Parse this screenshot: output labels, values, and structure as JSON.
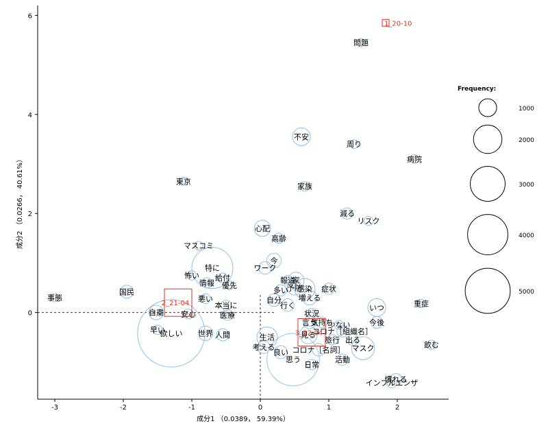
{
  "chart_data": {
    "type": "scatter",
    "xlabel": "成分1 （0.0389， 59.39%）",
    "ylabel": "成分2 （0.0266， 40.61%）",
    "xlim": [
      -3.25,
      2.75
    ],
    "ylim": [
      -1.75,
      6.2
    ],
    "xticks": [
      -3,
      -2,
      -1,
      0,
      1,
      2
    ],
    "yticks": [
      0,
      2,
      4,
      6
    ],
    "reference_lines": "dashed lines at x=0 and y=0",
    "grid": false,
    "bubble_color": "#8ec0ea",
    "date_color": "#e03020",
    "words": [
      {
        "label": "問題",
        "x": 1.47,
        "y": 5.45,
        "freq": 60
      },
      {
        "label": "不安",
        "x": 0.6,
        "y": 3.55,
        "freq": 300
      },
      {
        "label": "周り",
        "x": 1.37,
        "y": 3.4,
        "freq": 70
      },
      {
        "label": "病院",
        "x": 2.25,
        "y": 3.1,
        "freq": 70
      },
      {
        "label": "東京",
        "x": -1.12,
        "y": 2.65,
        "freq": 60
      },
      {
        "label": "家族",
        "x": 0.65,
        "y": 2.55,
        "freq": 80
      },
      {
        "label": "減る",
        "x": 1.27,
        "y": 2.0,
        "freq": 120
      },
      {
        "label": "リスク",
        "x": 1.58,
        "y": 1.85,
        "freq": 80
      },
      {
        "label": "心配",
        "x": 0.03,
        "y": 1.7,
        "freq": 250
      },
      {
        "label": "高齢",
        "x": 0.27,
        "y": 1.5,
        "freq": 100
      },
      {
        "label": "マスコミ",
        "x": -0.9,
        "y": 1.35,
        "freq": 70
      },
      {
        "label": "特に",
        "x": -0.7,
        "y": 0.9,
        "freq": 1600
      },
      {
        "label": "今",
        "x": 0.2,
        "y": 1.05,
        "freq": 200
      },
      {
        "label": "ワーク",
        "x": 0.07,
        "y": 0.9,
        "freq": 150
      },
      {
        "label": "怖い",
        "x": -1.0,
        "y": 0.75,
        "freq": 80
      },
      {
        "label": "給付",
        "x": -0.55,
        "y": 0.7,
        "freq": 90
      },
      {
        "label": "報道",
        "x": 0.4,
        "y": 0.65,
        "freq": 90
      },
      {
        "label": "情報",
        "x": -0.78,
        "y": 0.6,
        "freq": 100
      },
      {
        "label": "優先",
        "x": -0.45,
        "y": 0.55,
        "freq": 70
      },
      {
        "label": "家",
        "x": 0.52,
        "y": 0.65,
        "freq": 250
      },
      {
        "label": "予防",
        "x": 0.5,
        "y": 0.5,
        "freq": 200
      },
      {
        "label": "感染",
        "x": 0.65,
        "y": 0.48,
        "freq": 400
      },
      {
        "label": "症状",
        "x": 1.0,
        "y": 0.48,
        "freq": 120
      },
      {
        "label": "多い",
        "x": 0.3,
        "y": 0.45,
        "freq": 120
      },
      {
        "label": "国民",
        "x": -1.95,
        "y": 0.42,
        "freq": 160
      },
      {
        "label": "増える",
        "x": 0.72,
        "y": 0.3,
        "freq": 200
      },
      {
        "label": "事態",
        "x": -3.0,
        "y": 0.3,
        "freq": 60
      },
      {
        "label": "悪い",
        "x": -0.8,
        "y": 0.28,
        "freq": 90
      },
      {
        "label": "本当に",
        "x": -0.5,
        "y": 0.15,
        "freq": 100
      },
      {
        "label": "自分",
        "x": 0.2,
        "y": 0.25,
        "freq": 150
      },
      {
        "label": "行く",
        "x": 0.4,
        "y": 0.15,
        "freq": 150
      },
      {
        "label": "いつ",
        "x": 1.7,
        "y": 0.1,
        "freq": 300
      },
      {
        "label": "重症",
        "x": 2.35,
        "y": 0.18,
        "freq": 50
      },
      {
        "label": "状況",
        "x": 0.75,
        "y": -0.02,
        "freq": 100
      },
      {
        "label": "医療",
        "x": -0.48,
        "y": -0.05,
        "freq": 110
      },
      {
        "label": "自粛",
        "x": -1.52,
        "y": 0.0,
        "freq": 200
      },
      {
        "label": "安心",
        "x": -1.05,
        "y": -0.03,
        "freq": 90
      },
      {
        "label": "言う",
        "x": 0.72,
        "y": -0.2,
        "freq": 150
      },
      {
        "label": "気持ち",
        "x": 0.9,
        "y": -0.2,
        "freq": 110
      },
      {
        "label": "少ない",
        "x": 1.15,
        "y": -0.25,
        "freq": 80
      },
      {
        "label": "今後",
        "x": 1.7,
        "y": -0.2,
        "freq": 130
      },
      {
        "label": "早い",
        "x": -1.5,
        "y": -0.35,
        "freq": 80
      },
      {
        "label": "コロナ［組織名］",
        "x": 1.2,
        "y": -0.38,
        "freq": 120
      },
      {
        "label": "見る",
        "x": 0.7,
        "y": -0.45,
        "freq": 300
      },
      {
        "label": "欲しい",
        "x": -1.3,
        "y": -0.42,
        "freq": 4300
      },
      {
        "label": "世界",
        "x": -0.8,
        "y": -0.42,
        "freq": 200
      },
      {
        "label": "人間",
        "x": -0.55,
        "y": -0.45,
        "freq": 140
      },
      {
        "label": "生活",
        "x": 0.1,
        "y": -0.5,
        "freq": 400
      },
      {
        "label": "旅行",
        "x": 1.05,
        "y": -0.55,
        "freq": 100
      },
      {
        "label": "出る",
        "x": 1.35,
        "y": -0.55,
        "freq": 120
      },
      {
        "label": "飲む",
        "x": 2.5,
        "y": -0.65,
        "freq": 80
      },
      {
        "label": "考える",
        "x": 0.05,
        "y": -0.7,
        "freq": 150
      },
      {
        "label": "マスク",
        "x": 1.5,
        "y": -0.72,
        "freq": 500
      },
      {
        "label": "コロナ［名詞］",
        "x": 0.85,
        "y": -0.75,
        "freq": 150
      },
      {
        "label": "良い",
        "x": 0.3,
        "y": -0.8,
        "freq": 160
      },
      {
        "label": "活動",
        "x": 1.2,
        "y": -0.95,
        "freq": 120
      },
      {
        "label": "思う",
        "x": 0.48,
        "y": -0.95,
        "freq": 2600
      },
      {
        "label": "日常",
        "x": 0.75,
        "y": -1.05,
        "freq": 100
      },
      {
        "label": "慣れる",
        "x": 1.98,
        "y": -1.35,
        "freq": 130
      },
      {
        "label": "インフルエンザ",
        "x": 1.92,
        "y": -1.42,
        "freq": 90
      }
    ],
    "dates": [
      {
        "label": "1_20-10",
        "x": 1.83,
        "y": 5.85
      },
      {
        "label": "2_21-04",
        "x": -1.2,
        "y": 0.2
      },
      {
        "label": "3_22-04",
        "x": 0.75,
        "y": -0.4
      }
    ],
    "legend": {
      "title": "Frequency:",
      "position": "right",
      "values": [
        1000,
        2000,
        3000,
        4000,
        5000
      ]
    }
  }
}
